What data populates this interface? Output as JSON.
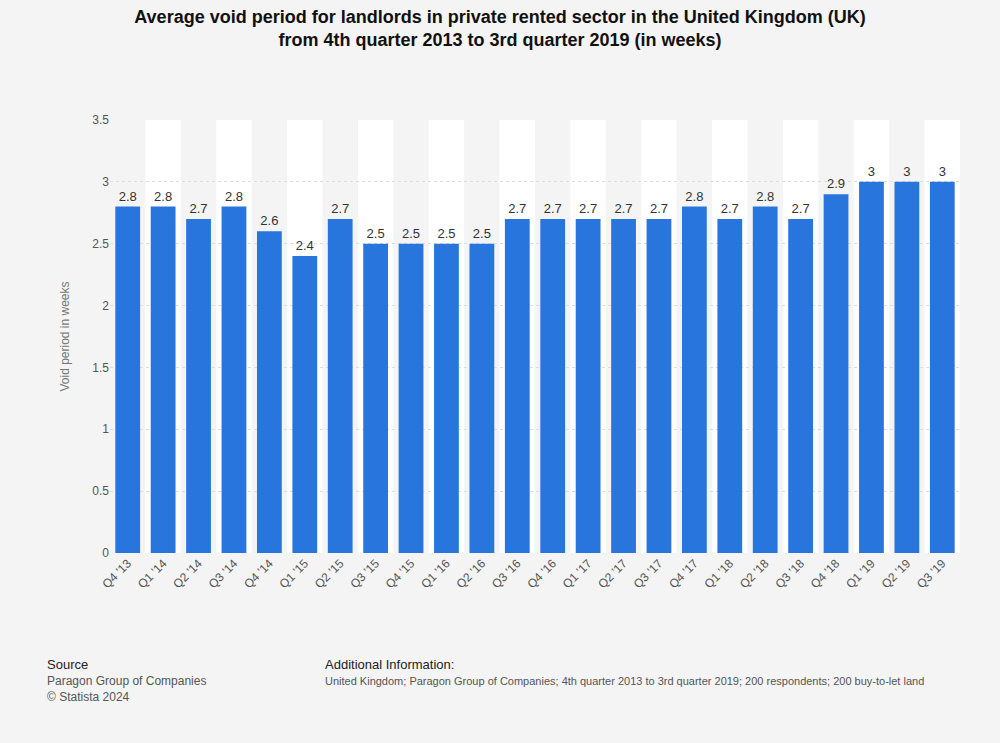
{
  "chart_data": {
    "type": "bar",
    "title": [
      "Average void period for landlords in private rented sector in the United Kingdom (UK)",
      "from 4th quarter 2013 to 3rd quarter 2019 (in weeks)"
    ],
    "y_label": "Void period in weeks",
    "categories": [
      "Q4 '13",
      "Q1 '14",
      "Q2 '14",
      "Q3 '14",
      "Q4 '14",
      "Q1 '15",
      "Q2 '15",
      "Q3 '15",
      "Q4 '15",
      "Q1 '16",
      "Q2 '16",
      "Q3 '16",
      "Q4 '16",
      "Q1 '17",
      "Q2 '17",
      "Q3 '17",
      "Q4 '17",
      "Q1 '18",
      "Q2 '18",
      "Q3 '18",
      "Q4 '18",
      "Q1 '19",
      "Q2 '19",
      "Q3 '19"
    ],
    "values": [
      2.8,
      2.8,
      2.7,
      2.8,
      2.6,
      2.4,
      2.7,
      2.5,
      2.5,
      2.5,
      2.5,
      2.7,
      2.7,
      2.7,
      2.7,
      2.7,
      2.8,
      2.7,
      2.8,
      2.7,
      2.9,
      3,
      3,
      3
    ],
    "color": "#2876dd",
    "ylim": [
      0,
      3.5
    ],
    "yticks": [
      0,
      0.5,
      1,
      1.5,
      2,
      2.5,
      3,
      3.5
    ],
    "grid": true,
    "data_labels": true,
    "source_heading": "Source",
    "source": [
      "Paragon Group of Companies",
      "© Statista 2024"
    ],
    "info_heading": "Additional Information:",
    "info": "United Kingdom; Paragon Group of Companies; 4th quarter 2013 to 3rd quarter 2019; 200 respondents; 200 buy-to-let land"
  }
}
